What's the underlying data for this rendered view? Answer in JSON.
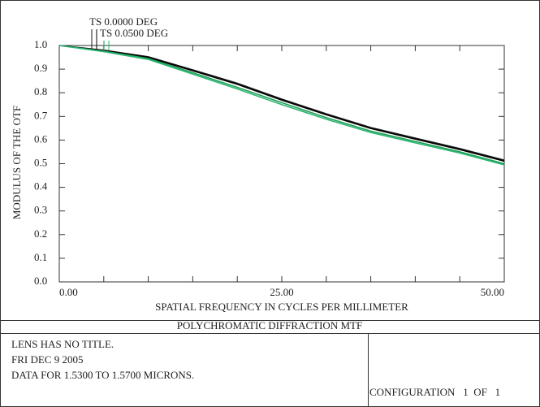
{
  "chart_data": {
    "type": "line",
    "title": "POLYCHROMATIC DIFFRACTION MTF",
    "xlabel": "SPATIAL FREQUENCY IN CYCLES PER MILLIMETER",
    "ylabel": "MODULUS OF THE OTF",
    "xlim": [
      0,
      50
    ],
    "ylim": [
      0,
      1
    ],
    "xticks": [
      {
        "value": 0,
        "label": "0.00"
      },
      {
        "value": 5,
        "label": null
      },
      {
        "value": 10,
        "label": null
      },
      {
        "value": 15,
        "label": null
      },
      {
        "value": 20,
        "label": null
      },
      {
        "value": 25,
        "label": "25.00"
      },
      {
        "value": 30,
        "label": null
      },
      {
        "value": 35,
        "label": null
      },
      {
        "value": 40,
        "label": null
      },
      {
        "value": 45,
        "label": null
      },
      {
        "value": 50,
        "label": "50.00"
      }
    ],
    "yticks": [
      {
        "value": 0,
        "label": "0.0"
      },
      0.1,
      0.2,
      0.3,
      0.4,
      0.5,
      0.6,
      0.7,
      0.8,
      0.9,
      {
        "value": 1,
        "label": "1.0"
      }
    ],
    "x": [
      0,
      5,
      10,
      15,
      20,
      25,
      30,
      35,
      40,
      45,
      50
    ],
    "series": [
      {
        "name": "TS 0.0000 DEG",
        "colors": [
          "#1a1a1a",
          "#000000"
        ],
        "tangential": [
          1.0,
          0.98,
          0.952,
          0.897,
          0.84,
          0.773,
          0.711,
          0.653,
          0.608,
          0.564,
          0.515
        ],
        "sagittal": [
          1.0,
          0.978,
          0.949,
          0.893,
          0.836,
          0.769,
          0.707,
          0.649,
          0.604,
          0.56,
          0.511
        ]
      },
      {
        "name": "TS 0.0500 DEG",
        "colors": [
          "#1f9e55",
          "#2bb673"
        ],
        "tangential": [
          1.0,
          0.976,
          0.945,
          0.885,
          0.823,
          0.758,
          0.695,
          0.638,
          0.594,
          0.55,
          0.5
        ],
        "sagittal": [
          1.0,
          0.974,
          0.941,
          0.879,
          0.816,
          0.75,
          0.688,
          0.632,
          0.588,
          0.545,
          0.495
        ]
      }
    ],
    "info_lines": [
      "LENS HAS NO TITLE.",
      "FRI DEC 9 2005",
      "DATA FOR 1.5300 TO 1.5700 MICRONS."
    ],
    "configuration": "CONFIGURATION   1  OF   1"
  }
}
